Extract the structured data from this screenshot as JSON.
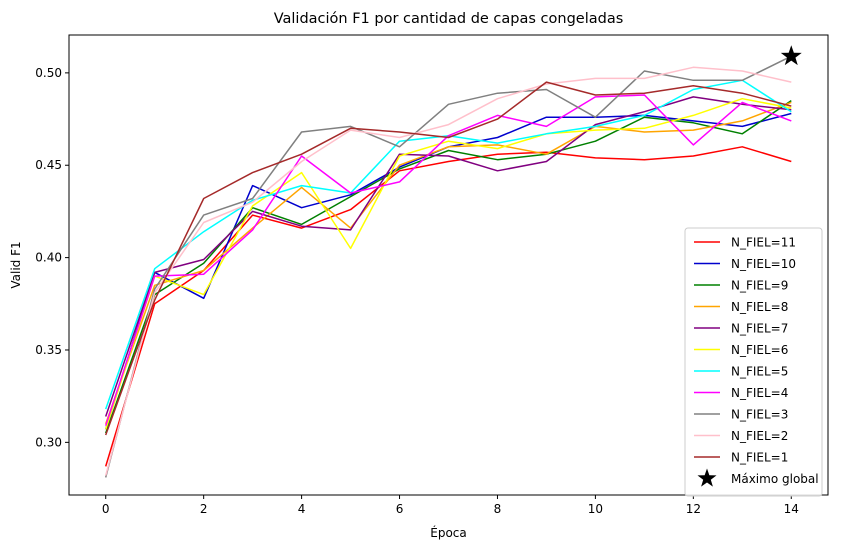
{
  "chart_data": {
    "type": "line",
    "title": "Validación F1 por cantidad de capas congeladas",
    "xlabel": "Época",
    "ylabel": "Valid F1",
    "xlim": [
      -0.75,
      14.75
    ],
    "ylim": [
      0.2715,
      0.5205
    ],
    "xticks": [
      0,
      2,
      4,
      6,
      8,
      10,
      12,
      14
    ],
    "yticks": [
      0.3,
      0.35,
      0.4,
      0.45,
      0.5
    ],
    "grid": false,
    "legend_position": "lower-right",
    "x": [
      0,
      1,
      2,
      3,
      4,
      5,
      6,
      7,
      8,
      9,
      10,
      11,
      12,
      13,
      14
    ],
    "series": [
      {
        "name": "N_FIEL=11",
        "color": "#ff0000",
        "values": [
          0.287,
          0.375,
          0.393,
          0.423,
          0.416,
          0.426,
          0.447,
          0.452,
          0.456,
          0.457,
          0.454,
          0.453,
          0.455,
          0.46,
          0.452
        ]
      },
      {
        "name": "N_FIEL=10",
        "color": "#0000cd",
        "values": [
          0.307,
          0.392,
          0.378,
          0.439,
          0.427,
          0.434,
          0.449,
          0.46,
          0.465,
          0.476,
          0.476,
          0.477,
          0.474,
          0.471,
          0.478
        ]
      },
      {
        "name": "N_FIEL=9",
        "color": "#008000",
        "values": [
          0.305,
          0.38,
          0.397,
          0.427,
          0.418,
          0.433,
          0.448,
          0.458,
          0.453,
          0.456,
          0.463,
          0.476,
          0.473,
          0.467,
          0.485
        ]
      },
      {
        "name": "N_FIEL=8",
        "color": "#ffa500",
        "values": [
          0.31,
          0.385,
          0.393,
          0.416,
          0.438,
          0.416,
          0.45,
          0.46,
          0.461,
          0.456,
          0.471,
          0.468,
          0.469,
          0.474,
          0.484
        ]
      },
      {
        "name": "N_FIEL=7",
        "color": "#800080",
        "values": [
          0.314,
          0.392,
          0.399,
          0.425,
          0.417,
          0.415,
          0.456,
          0.455,
          0.447,
          0.452,
          0.472,
          0.479,
          0.487,
          0.483,
          0.48
        ]
      },
      {
        "name": "N_FIEL=6",
        "color": "#ffff00",
        "values": [
          0.307,
          0.39,
          0.38,
          0.428,
          0.446,
          0.405,
          0.455,
          0.463,
          0.459,
          0.467,
          0.469,
          0.47,
          0.477,
          0.486,
          0.481
        ]
      },
      {
        "name": "N_FIEL=5",
        "color": "#00ffff",
        "values": [
          0.318,
          0.394,
          0.414,
          0.431,
          0.439,
          0.435,
          0.463,
          0.466,
          0.462,
          0.467,
          0.471,
          0.477,
          0.491,
          0.496,
          0.479
        ]
      },
      {
        "name": "N_FIEL=4",
        "color": "#ff00ff",
        "values": [
          0.309,
          0.39,
          0.391,
          0.415,
          0.455,
          0.435,
          0.441,
          0.466,
          0.477,
          0.471,
          0.487,
          0.488,
          0.461,
          0.484,
          0.474
        ]
      },
      {
        "name": "N_FIEL=3",
        "color": "#808080",
        "values": [
          0.281,
          0.383,
          0.423,
          0.432,
          0.468,
          0.471,
          0.46,
          0.483,
          0.489,
          0.491,
          0.476,
          0.501,
          0.496,
          0.496,
          0.509
        ]
      },
      {
        "name": "N_FIEL=2",
        "color": "#ffc0cb",
        "values": [
          0.282,
          0.381,
          0.419,
          0.43,
          0.452,
          0.469,
          0.465,
          0.472,
          0.486,
          0.494,
          0.497,
          0.497,
          0.503,
          0.501,
          0.495
        ]
      },
      {
        "name": "N_FIEL=1",
        "color": "#a52a2a",
        "values": [
          0.304,
          0.377,
          0.432,
          0.446,
          0.456,
          0.47,
          0.468,
          0.465,
          0.475,
          0.495,
          0.488,
          0.489,
          0.493,
          0.489,
          0.482
        ]
      }
    ],
    "annotations": [
      {
        "label": "Máximo global",
        "marker": "star",
        "color": "#000000",
        "x": 14,
        "y": 0.509
      }
    ]
  }
}
